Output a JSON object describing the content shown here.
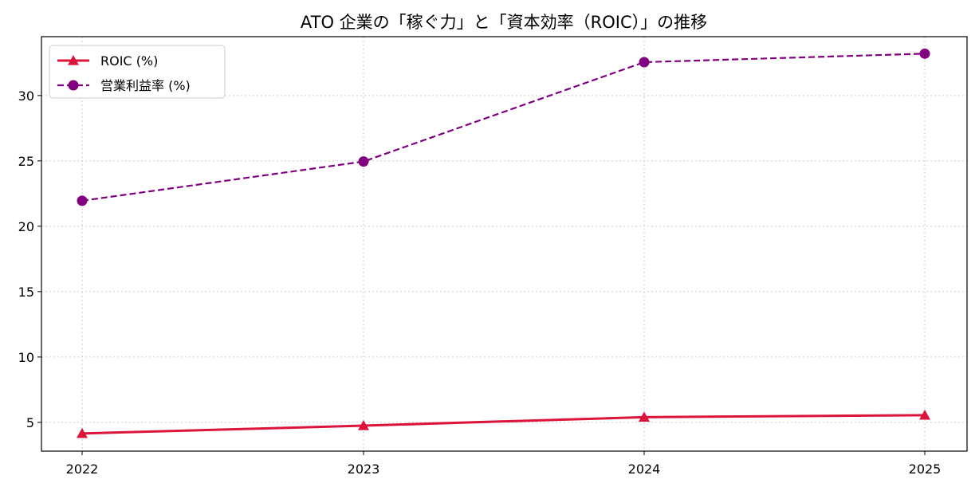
{
  "chart_data": {
    "type": "line",
    "title": "ATO 企業の「稼ぐ力」と「資本効率（ROIC）」の推移",
    "xlabel": "",
    "ylabel": "",
    "x": [
      "2022",
      "2023",
      "2024",
      "2025"
    ],
    "yticks": [
      5,
      10,
      15,
      20,
      25,
      30
    ],
    "ylim": [
      2.8,
      34.5
    ],
    "grid": true,
    "legend_position": "top-left",
    "series": [
      {
        "name": "ROIC (%)",
        "values": [
          4.15,
          4.75,
          5.4,
          5.55
        ],
        "color": "#dc143c",
        "line_style": "solid",
        "marker": "triangle"
      },
      {
        "name": "営業利益率 (%)",
        "values": [
          21.95,
          24.95,
          32.55,
          33.2
        ],
        "color": "#800080",
        "line_style": "dashed",
        "marker": "circle"
      }
    ]
  }
}
